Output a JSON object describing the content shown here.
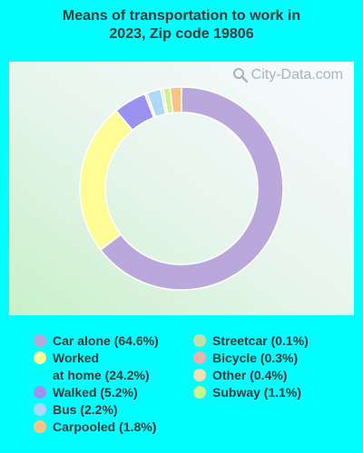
{
  "title_lines": [
    "Means of transportation to work in",
    "2023, Zip code 19806"
  ],
  "watermark": "City-Data.com",
  "chart_data": {
    "type": "pie",
    "title": "Means of transportation to work in 2023, Zip code 19806",
    "donut": true,
    "slices": [
      {
        "label": "Car alone",
        "value": 64.6,
        "color": "#baa8dc"
      },
      {
        "label": "Worked at home",
        "value": 24.2,
        "color": "#fdfc95"
      },
      {
        "label": "Walked",
        "value": 5.2,
        "color": "#9a92ef"
      },
      {
        "label": "Streetcar",
        "value": 0.1,
        "color": "#c7dca7"
      },
      {
        "label": "Bicycle",
        "value": 0.3,
        "color": "#efb0ad"
      },
      {
        "label": "Bus",
        "value": 2.2,
        "color": "#add8f7"
      },
      {
        "label": "Other",
        "value": 0.4,
        "color": "#f8dcb4"
      },
      {
        "label": "Subway",
        "value": 1.1,
        "color": "#ccf493"
      },
      {
        "label": "Carpooled",
        "value": 1.8,
        "color": "#f9c384"
      }
    ],
    "legend": {
      "placement": "bottom",
      "columns": [
        [
          {
            "text": "Car alone (64.6%)",
            "color": "#baa8dc"
          },
          {
            "text": "Worked\nat home (24.2%)",
            "color": "#fdfc95"
          },
          {
            "text": "Walked (5.2%)",
            "color": "#9a92ef"
          },
          {
            "text": "Bus (2.2%)",
            "color": "#add8f7"
          },
          {
            "text": "Carpooled (1.8%)",
            "color": "#f9c384"
          }
        ],
        [
          {
            "text": "Streetcar (0.1%)",
            "color": "#c7dca7"
          },
          {
            "text": "Bicycle (0.3%)",
            "color": "#efb0ad"
          },
          {
            "text": "Other (0.4%)",
            "color": "#f8dcb4"
          },
          {
            "text": "Subway (1.1%)",
            "color": "#ccf493"
          }
        ]
      ]
    }
  }
}
